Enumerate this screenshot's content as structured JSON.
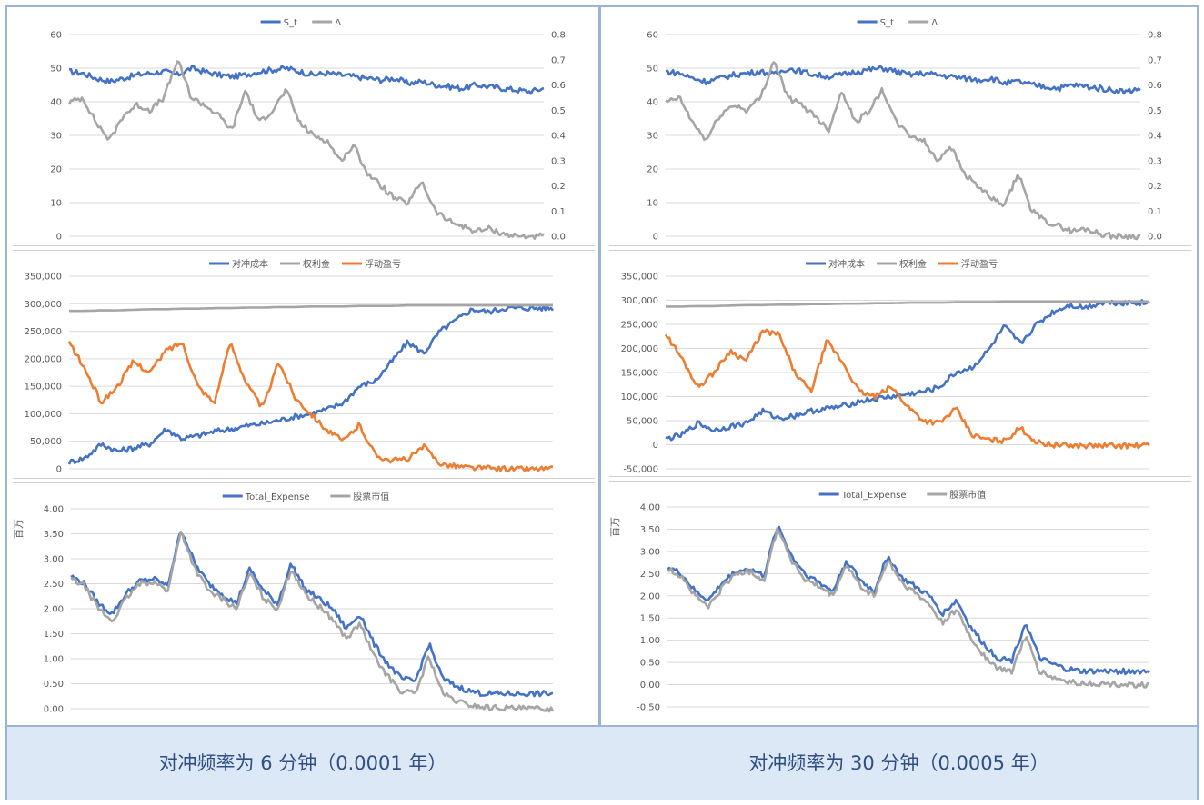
{
  "captions": {
    "left": "对冲频率为 6 分钟（0.0001 年）",
    "right": "对冲频率为 30 分钟（0.0005 年）"
  },
  "colors": {
    "blue": "#4472c4",
    "gray": "#a5a5a5",
    "orange": "#ed7d31",
    "grid": "#d9d9d9",
    "axis": "#595959"
  },
  "chart_data": [
    {
      "id": "left-top",
      "type": "line",
      "legend": [
        "S_t",
        "Δ"
      ],
      "yticks_left": [
        "60",
        "50",
        "40",
        "30",
        "20",
        "10",
        "0"
      ],
      "yticks_right": [
        "0.8",
        "0.7",
        "0.6",
        "0.5",
        "0.4",
        "0.3",
        "0.2",
        "0.1",
        "0.0"
      ],
      "ylim_left": [
        0,
        60
      ],
      "ylim_right": [
        0,
        0.8
      ],
      "series": [
        {
          "name": "S_t",
          "axis": "left",
          "values": [
            49,
            48.5,
            47,
            46,
            47,
            48,
            48.5,
            49,
            48,
            50,
            49,
            48,
            47.5,
            48,
            49,
            49.5,
            50,
            49,
            48,
            48.5,
            48,
            47.5,
            47,
            46.5,
            47,
            45.5,
            46,
            45,
            44.5,
            44,
            45,
            44.5,
            44,
            43.5,
            43,
            44
          ]
        },
        {
          "name": "Δ",
          "axis": "right",
          "values": [
            0.53,
            0.55,
            0.45,
            0.38,
            0.48,
            0.52,
            0.5,
            0.55,
            0.7,
            0.55,
            0.52,
            0.48,
            0.42,
            0.58,
            0.45,
            0.5,
            0.58,
            0.45,
            0.4,
            0.38,
            0.3,
            0.36,
            0.25,
            0.2,
            0.15,
            0.13,
            0.22,
            0.1,
            0.06,
            0.04,
            0.02,
            0.03,
            0.01,
            0.0,
            0.0,
            0.0
          ]
        }
      ]
    },
    {
      "id": "left-mid",
      "type": "line",
      "legend": [
        "对冲成本",
        "权利金",
        "浮动盈亏"
      ],
      "yticks": [
        "350,000",
        "300,000",
        "250,000",
        "200,000",
        "150,000",
        "100,000",
        "50,000",
        "0"
      ],
      "ylim": [
        0,
        350000
      ],
      "series": [
        {
          "name": "对冲成本",
          "values": [
            12000,
            20000,
            45000,
            32000,
            38000,
            45000,
            72000,
            55000,
            60000,
            68000,
            72000,
            78000,
            82000,
            88000,
            95000,
            100000,
            108000,
            120000,
            150000,
            160000,
            195000,
            230000,
            210000,
            250000,
            270000,
            290000,
            285000,
            292000,
            292000,
            292000,
            292000
          ]
        },
        {
          "name": "权利金",
          "values": [
            287000,
            287000,
            288000,
            288000,
            289000,
            290000,
            290000,
            291000,
            291000,
            292000,
            292000,
            293000,
            293000,
            294000,
            294000,
            295000,
            295000,
            295000,
            296000,
            296000,
            296000,
            297000,
            297000,
            297000,
            297000,
            297000,
            297000,
            297000,
            297000,
            297000,
            297000
          ]
        },
        {
          "name": "浮动盈亏",
          "values": [
            230000,
            180000,
            120000,
            150000,
            195000,
            175000,
            215000,
            230000,
            150000,
            120000,
            230000,
            155000,
            110000,
            195000,
            130000,
            100000,
            70000,
            50000,
            80000,
            25000,
            15000,
            18000,
            40000,
            10000,
            5000,
            2000,
            1000,
            0,
            0,
            0,
            0
          ]
        }
      ]
    },
    {
      "id": "left-bot",
      "type": "line",
      "legend": [
        "Total_Expense",
        "股票市值"
      ],
      "ylabel": "百万",
      "yticks": [
        "4.00",
        "3.50",
        "3.00",
        "2.50",
        "2.00",
        "1.50",
        "1.00",
        "0.50",
        "0.00"
      ],
      "ylim": [
        0,
        4
      ],
      "series": [
        {
          "name": "Total_Expense",
          "values": [
            2.65,
            2.5,
            2.1,
            1.9,
            2.3,
            2.55,
            2.6,
            2.45,
            3.6,
            2.9,
            2.5,
            2.3,
            2.1,
            2.8,
            2.35,
            2.1,
            2.9,
            2.4,
            2.2,
            2.0,
            1.6,
            1.9,
            1.3,
            0.9,
            0.6,
            0.55,
            1.3,
            0.6,
            0.45,
            0.35,
            0.3,
            0.3,
            0.3,
            0.3,
            0.3,
            0.3
          ]
        },
        {
          "name": "股票市值",
          "values": [
            2.6,
            2.45,
            2.0,
            1.75,
            2.2,
            2.5,
            2.55,
            2.35,
            3.55,
            2.8,
            2.35,
            2.2,
            2.0,
            2.7,
            2.2,
            2.0,
            2.8,
            2.3,
            2.05,
            1.8,
            1.4,
            1.7,
            1.05,
            0.65,
            0.35,
            0.3,
            1.05,
            0.3,
            0.15,
            0.07,
            0.03,
            0.02,
            0.01,
            0.0,
            0.0,
            0.0
          ]
        }
      ]
    },
    {
      "id": "right-top",
      "type": "line",
      "legend": [
        "S_t",
        "Δ"
      ],
      "yticks_left": [
        "60",
        "50",
        "40",
        "30",
        "20",
        "10",
        "0"
      ],
      "yticks_right": [
        "0.8",
        "0.7",
        "0.6",
        "0.5",
        "0.4",
        "0.3",
        "0.2",
        "0.1",
        "0.0"
      ],
      "ylim_left": [
        0,
        60
      ],
      "ylim_right": [
        0,
        0.8
      ],
      "series": [
        {
          "name": "S_t",
          "axis": "left",
          "values": [
            49,
            48.5,
            47,
            46,
            47,
            48,
            48.5,
            49,
            48,
            50,
            49,
            48,
            47.5,
            48,
            49,
            49.5,
            50,
            49,
            48,
            48.5,
            48,
            47.5,
            47,
            46.5,
            47,
            45.5,
            46,
            45,
            44.5,
            44,
            45,
            44.5,
            44,
            43.5,
            43,
            44
          ]
        },
        {
          "name": "Δ",
          "axis": "right",
          "values": [
            0.53,
            0.55,
            0.45,
            0.38,
            0.48,
            0.52,
            0.5,
            0.55,
            0.7,
            0.55,
            0.52,
            0.48,
            0.42,
            0.58,
            0.45,
            0.5,
            0.58,
            0.45,
            0.4,
            0.38,
            0.3,
            0.36,
            0.25,
            0.2,
            0.15,
            0.12,
            0.25,
            0.1,
            0.06,
            0.04,
            0.02,
            0.03,
            0.01,
            0.0,
            0.0,
            0.0
          ]
        }
      ]
    },
    {
      "id": "right-mid",
      "type": "line",
      "legend": [
        "对冲成本",
        "权利金",
        "浮动盈亏"
      ],
      "yticks": [
        "350,000",
        "300,000",
        "250,000",
        "200,000",
        "150,000",
        "100,000",
        "50,000",
        "0",
        "-50,000"
      ],
      "ylim": [
        -50000,
        350000
      ],
      "series": [
        {
          "name": "对冲成本",
          "values": [
            12000,
            20000,
            45000,
            30000,
            38000,
            45000,
            70000,
            55000,
            60000,
            70000,
            75000,
            80000,
            90000,
            95000,
            100000,
            105000,
            110000,
            120000,
            150000,
            160000,
            195000,
            245000,
            210000,
            250000,
            275000,
            290000,
            285000,
            295000,
            295000,
            295000,
            295000
          ]
        },
        {
          "name": "权利金",
          "values": [
            287000,
            287000,
            288000,
            288000,
            289000,
            290000,
            290000,
            291000,
            291000,
            292000,
            292000,
            293000,
            293000,
            294000,
            294000,
            295000,
            295000,
            295000,
            296000,
            296000,
            296000,
            297000,
            297000,
            297000,
            297000,
            297000,
            297000,
            297000,
            297000,
            297000,
            297000
          ]
        },
        {
          "name": "浮动盈亏",
          "values": [
            230000,
            180000,
            120000,
            150000,
            195000,
            175000,
            235000,
            230000,
            150000,
            110000,
            215000,
            170000,
            110000,
            100000,
            120000,
            80000,
            50000,
            45000,
            75000,
            20000,
            10000,
            8000,
            35000,
            5000,
            0,
            -2000,
            -2000,
            -2000,
            -2000,
            -2000,
            -2000
          ]
        }
      ]
    },
    {
      "id": "right-bot",
      "type": "line",
      "legend": [
        "Total_Expense",
        "股票市值"
      ],
      "ylabel": "百万",
      "yticks": [
        "4.00",
        "3.50",
        "3.00",
        "2.50",
        "2.00",
        "1.50",
        "1.00",
        "0.50",
        "0.00",
        "-0.50"
      ],
      "ylim": [
        -0.5,
        4
      ],
      "series": [
        {
          "name": "Total_Expense",
          "values": [
            2.65,
            2.5,
            2.1,
            1.9,
            2.3,
            2.55,
            2.6,
            2.45,
            3.6,
            2.9,
            2.5,
            2.3,
            2.1,
            2.8,
            2.35,
            2.1,
            2.9,
            2.4,
            2.2,
            2.0,
            1.6,
            1.9,
            1.3,
            0.9,
            0.6,
            0.55,
            1.4,
            0.6,
            0.45,
            0.35,
            0.3,
            0.3,
            0.3,
            0.3,
            0.3,
            0.3
          ]
        },
        {
          "name": "股票市值",
          "values": [
            2.6,
            2.45,
            2.0,
            1.75,
            2.2,
            2.5,
            2.55,
            2.35,
            3.55,
            2.8,
            2.35,
            2.2,
            2.0,
            2.7,
            2.2,
            2.0,
            2.8,
            2.3,
            2.05,
            1.8,
            1.4,
            1.7,
            1.05,
            0.65,
            0.35,
            0.3,
            1.1,
            0.3,
            0.15,
            0.07,
            0.03,
            0.02,
            0.01,
            0.0,
            0.0,
            0.0
          ]
        }
      ]
    }
  ]
}
